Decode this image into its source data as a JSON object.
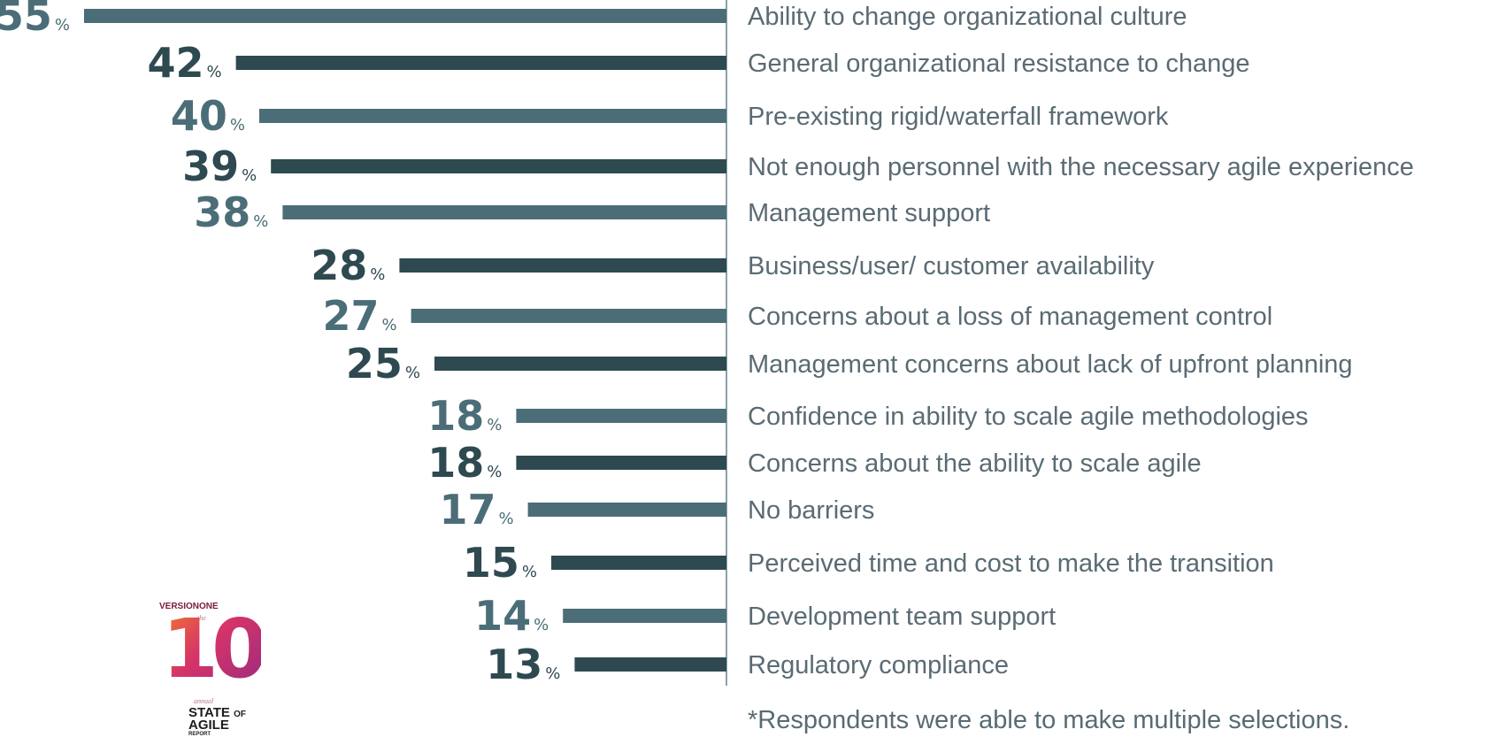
{
  "chart_data": {
    "type": "bar",
    "orientation": "horizontal",
    "unit": "%",
    "categories": [
      "Ability to change organizational culture",
      "General organizational resistance to change",
      "Pre-existing rigid/waterfall framework",
      "Not enough personnel with the necessary agile experience",
      "Management support",
      "Business/user/ customer availability",
      "Concerns about a loss of management control",
      "Management concerns about lack of upfront planning",
      "Confidence in ability to scale agile methodologies",
      "Concerns about the ability to scale agile",
      "No barriers",
      "Perceived time and cost to make the transition",
      "Development team support",
      "Regulatory compliance"
    ],
    "values": [
      55,
      42,
      40,
      39,
      38,
      28,
      27,
      25,
      18,
      18,
      17,
      15,
      14,
      13
    ],
    "bar_colors": [
      "#4b6d77",
      "#2e4950"
    ],
    "title": "",
    "xlabel": "",
    "ylabel": "",
    "grid": false,
    "legend": "none"
  },
  "footnote": "*Respondents were able to make multiple selections.",
  "logo": {
    "brand": "VERSIONONE",
    "the": "the",
    "number": "10",
    "annual": "annual",
    "state": "STATE",
    "of": "OF",
    "agile": "AGILE",
    "report": "REPORT"
  }
}
